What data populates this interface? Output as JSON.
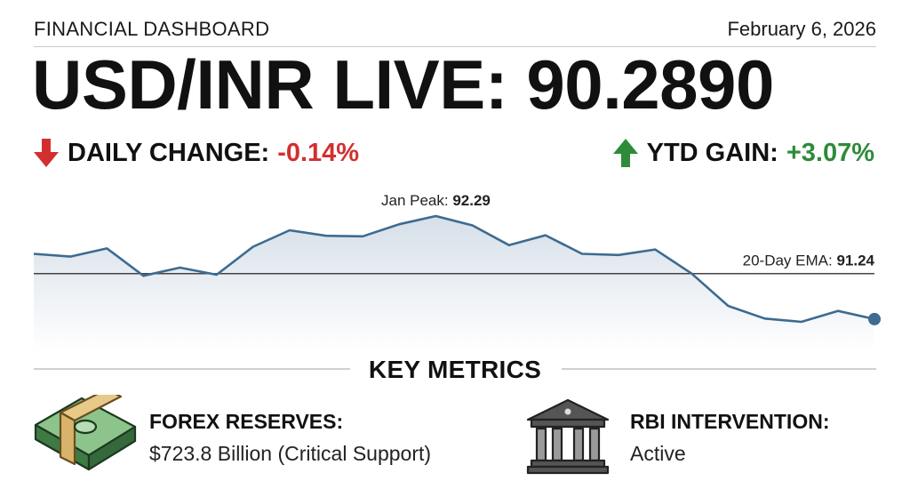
{
  "header": {
    "section_label": "FINANCIAL DASHBOARD",
    "date": "February 6, 2026"
  },
  "headline": "USD/INR LIVE: 90.2890",
  "stats": {
    "daily": {
      "label": "DAILY CHANGE:",
      "value": "-0.14%",
      "direction": "down",
      "color": "#d32f2f",
      "icon": "arrow-down-icon"
    },
    "ytd": {
      "label": "YTD GAIN:",
      "value": "+3.07%",
      "direction": "up",
      "color": "#2e8b3a",
      "icon": "arrow-up-icon"
    }
  },
  "chart_data": {
    "type": "area",
    "title": "",
    "xlabel": "",
    "ylabel": "",
    "series": [
      {
        "values": [
          91.6,
          91.55,
          91.7,
          91.2,
          91.35,
          91.22,
          91.73,
          92.03,
          91.93,
          91.92,
          92.14,
          92.29,
          92.12,
          91.76,
          91.94,
          91.6,
          91.58,
          91.68,
          91.24,
          90.65,
          90.42,
          90.36,
          90.56,
          90.41
        ],
        "color": "#3d6b91"
      }
    ],
    "reference_line": {
      "label": "20-Day EMA:",
      "value": 91.24
    },
    "peak_annotation": {
      "label": "Jan Peak:",
      "value": 92.29
    },
    "last_point_marker": true,
    "grid": false,
    "axes_visible": false
  },
  "key_metrics": {
    "title": "KEY METRICS",
    "items": [
      {
        "title": "FOREX RESERVES:",
        "value": "$723.8 Billion (Critical Support)",
        "icon": "money-stack-icon"
      },
      {
        "title": "RBI INTERVENTION:",
        "value": "Active",
        "icon": "bank-building-icon"
      }
    ]
  }
}
